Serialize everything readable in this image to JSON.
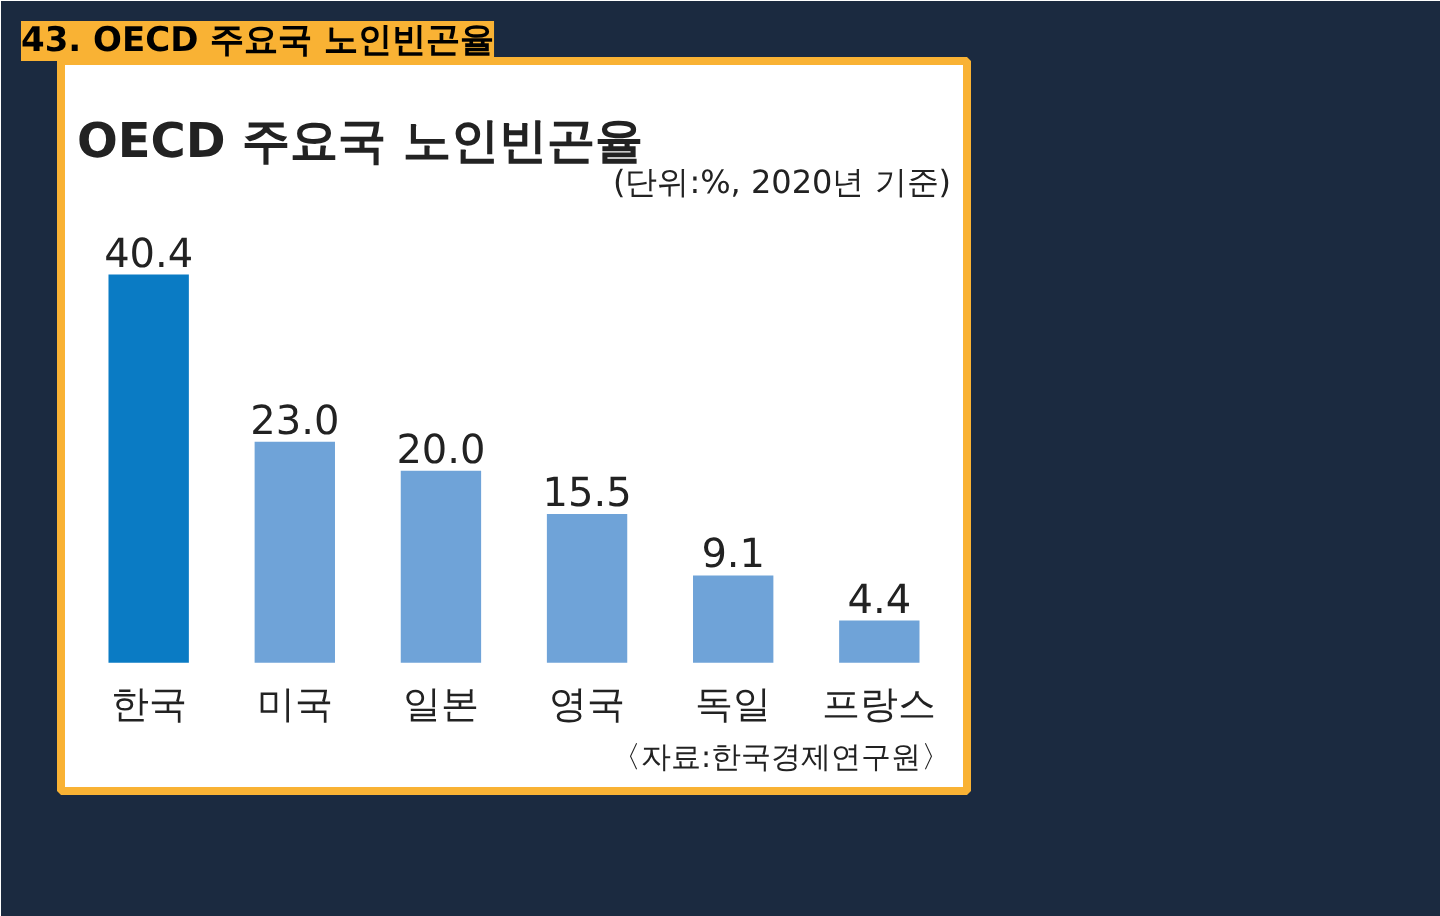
{
  "chart_data": {
    "type": "bar",
    "title": "OECD 주요국 노인빈곤율",
    "subtitle": "(단위:%, 2020년 기준)",
    "categories": [
      "한국",
      "미국",
      "일본",
      "영국",
      "독일",
      "프랑스"
    ],
    "values": [
      40.4,
      23.0,
      20.0,
      15.5,
      9.1,
      4.4
    ],
    "colors": [
      "#0a7bc4",
      "#6fa3d8",
      "#6fa3d8",
      "#6fa3d8",
      "#6fa3d8",
      "#6fa3d8"
    ],
    "value_labels": [
      "40.4",
      "23.0",
      "20.0",
      "15.5",
      "9.1",
      "4.4"
    ],
    "annotations": [
      "43. OECD 주요국 노인빈곤율",
      "〈자료:한국경제연구원〉"
    ]
  }
}
